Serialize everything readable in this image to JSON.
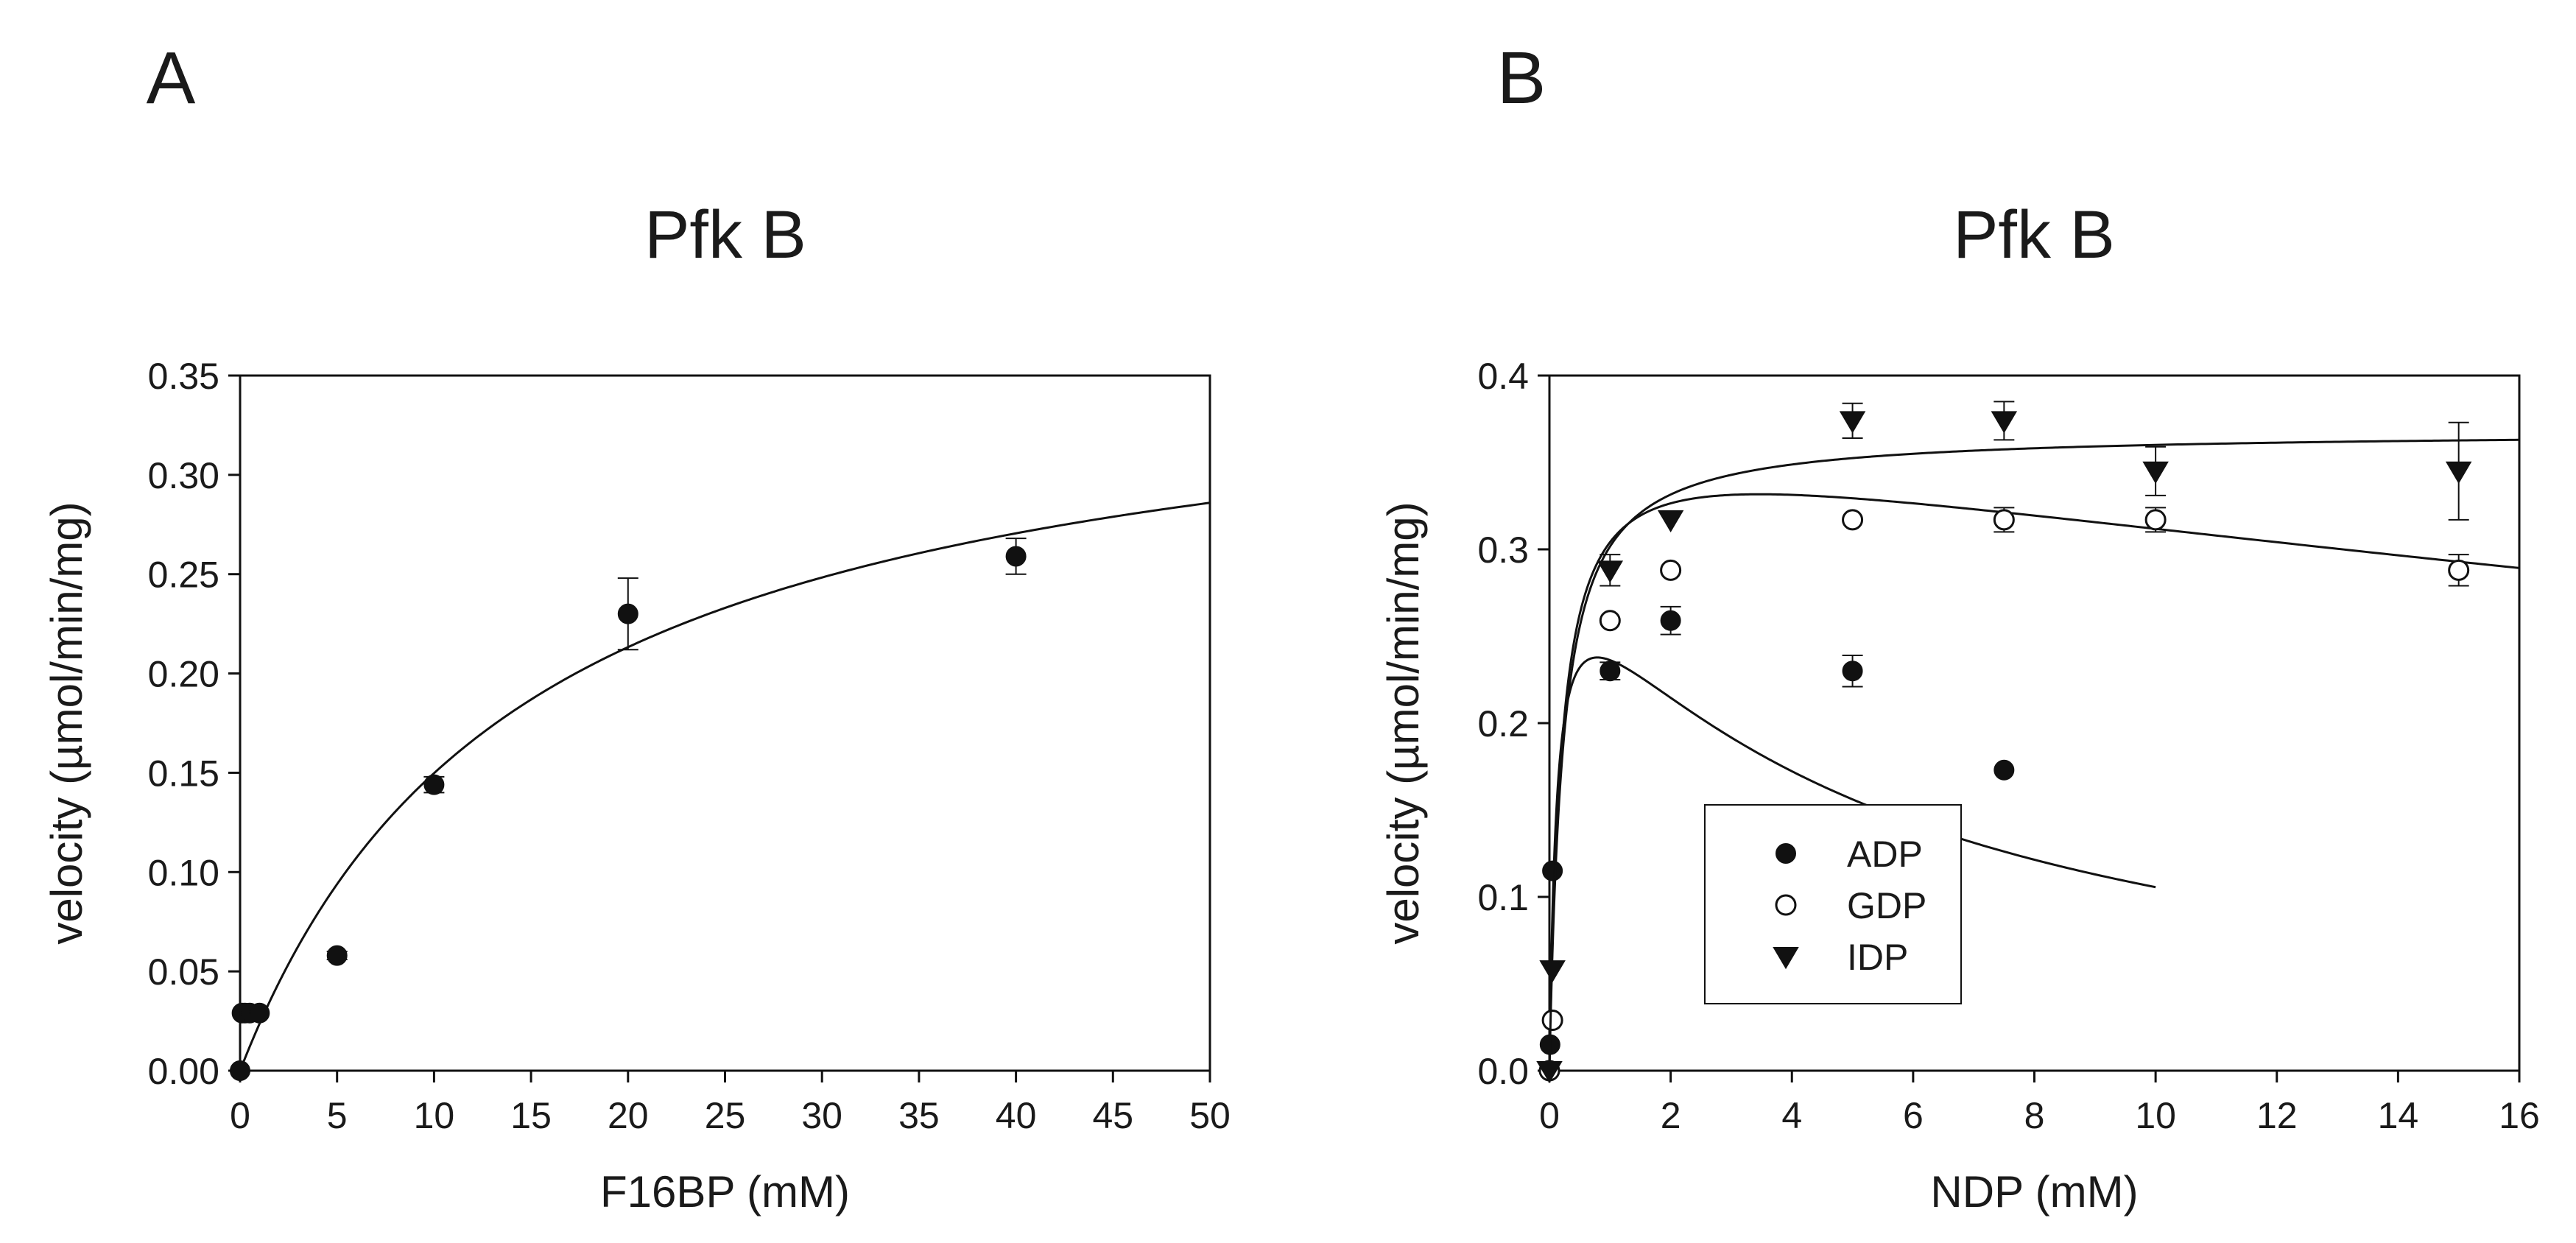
{
  "panels": [
    {
      "panel_label": "A",
      "chart_data": {
        "type": "scatter",
        "title": "Pfk B",
        "xlabel": "F16BP (mM)",
        "ylabel": "velocity (µmol/min/mg)",
        "xlim": [
          0,
          50
        ],
        "ylim": [
          0,
          0.35
        ],
        "xticks": [
          0,
          5,
          10,
          15,
          20,
          25,
          30,
          35,
          40,
          45,
          50
        ],
        "xtick_labels": [
          "0",
          "5",
          "10",
          "15",
          "20",
          "25",
          "30",
          "35",
          "40",
          "45",
          "50"
        ],
        "yticks": [
          0,
          0.05,
          0.1,
          0.15,
          0.2,
          0.25,
          0.3,
          0.35
        ],
        "ytick_labels": [
          "0.00",
          "0.05",
          "0.10",
          "0.15",
          "0.20",
          "0.25",
          "0.30",
          "0.35"
        ],
        "grid": false,
        "series": [
          {
            "name": "F16BP",
            "marker": "filled-circle",
            "x": [
              0,
              0.1,
              0.25,
              0.5,
              1,
              5,
              10,
              20,
              40
            ],
            "y": [
              0,
              0.029,
              0.029,
              0.029,
              0.029,
              0.058,
              0.144,
              0.23,
              0.259
            ],
            "yerr": [
              0,
              0,
              0,
              0,
              0,
              0.002,
              0.004,
              0.018,
              0.009
            ],
            "fit": {
              "model": "hyperbolic",
              "vmax": 0.37,
              "km": 14.7,
              "x_start": 0,
              "x_end": 50
            }
          }
        ]
      }
    },
    {
      "panel_label": "B",
      "chart_data": {
        "type": "scatter",
        "title": "Pfk B",
        "xlabel": "NDP (mM)",
        "ylabel": "velocity (µmol/min/mg)",
        "xlim": [
          0,
          16
        ],
        "ylim": [
          0,
          0.4
        ],
        "xticks": [
          0,
          2,
          4,
          6,
          8,
          10,
          12,
          14,
          16
        ],
        "xtick_labels": [
          "0",
          "2",
          "4",
          "6",
          "8",
          "10",
          "12",
          "14",
          "16"
        ],
        "yticks": [
          0,
          0.1,
          0.2,
          0.3,
          0.4
        ],
        "ytick_labels": [
          "0.0",
          "0.1",
          "0.2",
          "0.3",
          "0.4"
        ],
        "grid": false,
        "legend_position": "lower-left",
        "series": [
          {
            "name": "ADP",
            "marker": "filled-circle",
            "x": [
              0,
              0.01,
              0.05,
              1,
              2,
              5,
              7.5
            ],
            "y": [
              0,
              0.015,
              0.115,
              0.23,
              0.259,
              0.23,
              0.173
            ],
            "yerr": [
              0,
              0,
              0,
              0.005,
              0.008,
              0.009,
              0
            ],
            "fit": {
              "model": "substrate-inhibition",
              "vmax": 0.31,
              "km": 0.12,
              "ki": 5.2,
              "x_start": 0,
              "x_end": 10
            }
          },
          {
            "name": "GDP",
            "marker": "open-circle",
            "x": [
              0,
              0.05,
              1,
              2,
              5,
              7.5,
              10,
              15
            ],
            "y": [
              0,
              0.029,
              0.259,
              0.288,
              0.317,
              0.317,
              0.317,
              0.288
            ],
            "yerr": [
              0,
              0,
              0,
              0,
              0,
              0.007,
              0.007,
              0.009
            ],
            "fit": {
              "model": "substrate-inhibition",
              "vmax": 0.37,
              "km": 0.2,
              "ki": 60,
              "x_start": 0,
              "x_end": 16
            }
          },
          {
            "name": "IDP",
            "marker": "filled-triangle-down",
            "x": [
              0,
              0.05,
              1,
              2,
              5,
              7.5,
              10,
              15
            ],
            "y": [
              0,
              0.058,
              0.288,
              0.317,
              0.374,
              0.374,
              0.345,
              0.345
            ],
            "yerr": [
              0,
              0,
              0.009,
              0,
              0.01,
              0.011,
              0.014,
              0.028
            ],
            "fit": {
              "model": "hyperbolic",
              "vmax": 0.368,
              "km": 0.22,
              "x_start": 0,
              "x_end": 16
            }
          }
        ]
      }
    }
  ]
}
